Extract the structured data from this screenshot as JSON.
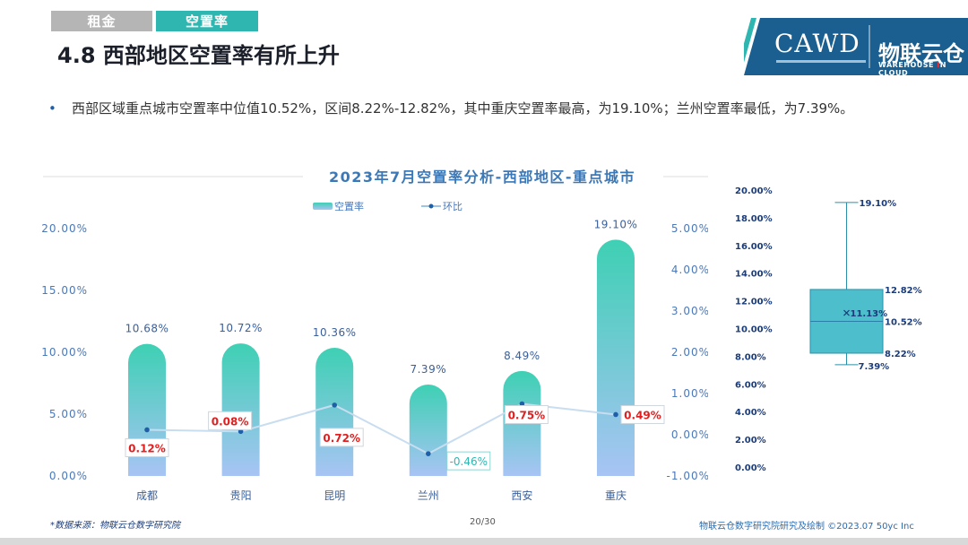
{
  "header": {
    "tabs": [
      {
        "label": "租金"
      },
      {
        "label": "空置率"
      }
    ],
    "title": "4.8 西部地区空置率有所上升"
  },
  "logo": {
    "cawd": "CAWD",
    "cn": "物联云仓",
    "en_pre": "WAREHOUSE ",
    "en_accent": "I",
    "en_post": "N CLOUD"
  },
  "bullet": {
    "marker": "•",
    "text": "西部区域重点城市空置率中位值10.52%，区间8.22%-12.82%，其中重庆空置率最高，为19.10%；兰州空置率最低，为7.39%。"
  },
  "chart_data": [
    {
      "type": "bar",
      "title": "2023年7月空置率分析-西部地区-重点城市",
      "categories": [
        "成都",
        "贵阳",
        "昆明",
        "兰州",
        "西安",
        "重庆"
      ],
      "series": [
        {
          "name": "空置率",
          "type": "bar",
          "axis": "left",
          "values": [
            10.68,
            10.72,
            10.36,
            7.39,
            8.49,
            19.1
          ],
          "labels": [
            "10.68%",
            "10.72%",
            "10.36%",
            "7.39%",
            "8.49%",
            "19.10%"
          ]
        },
        {
          "name": "环比",
          "type": "line",
          "axis": "right",
          "values": [
            0.12,
            0.08,
            0.72,
            -0.46,
            0.75,
            0.49
          ],
          "labels": [
            "0.12%",
            "0.08%",
            "0.72%",
            "-0.46%",
            "0.75%",
            "0.49%"
          ]
        }
      ],
      "left_axis": {
        "ylim": [
          0,
          20
        ],
        "ticks": [
          "0.00%",
          "5.00%",
          "10.00%",
          "15.00%",
          "20.00%"
        ]
      },
      "right_axis": {
        "ylim": [
          -1,
          5
        ],
        "ticks": [
          "-1.00%",
          "0.00%",
          "1.00%",
          "2.00%",
          "3.00%",
          "4.00%",
          "5.00%"
        ]
      },
      "legend_position": "top-left",
      "colors": {
        "bar_top": "#3ed0b4",
        "bar_bottom": "#a8c4f4",
        "line": "#c8ddf0",
        "point": "#1f5fa8",
        "label_pos": "#e02020",
        "label_neg": "#2fb6b1"
      }
    },
    {
      "type": "box",
      "ylim": [
        0,
        20
      ],
      "ticks": [
        "0.00%",
        "2.00%",
        "4.00%",
        "6.00%",
        "8.00%",
        "10.00%",
        "12.00%",
        "14.00%",
        "16.00%",
        "18.00%",
        "20.00%"
      ],
      "min": 7.39,
      "q1": 8.22,
      "median": 10.52,
      "mean": 11.13,
      "q3": 12.82,
      "max": 19.1,
      "labels": {
        "min": "7.39%",
        "q1": "8.22%",
        "median": "10.52%",
        "mean": "11.13%",
        "q3": "12.82%",
        "max": "19.10%"
      },
      "colors": {
        "box": "#4dbfcc",
        "stroke": "#2a8fa8",
        "label": "#1b3c7a"
      }
    }
  ],
  "footer": {
    "source": "*数据来源：物联云仓数字研究院",
    "page": "20/30",
    "right": "物联云仓数字研究院研究及绘制   ©2023.07  50yc Inc"
  }
}
